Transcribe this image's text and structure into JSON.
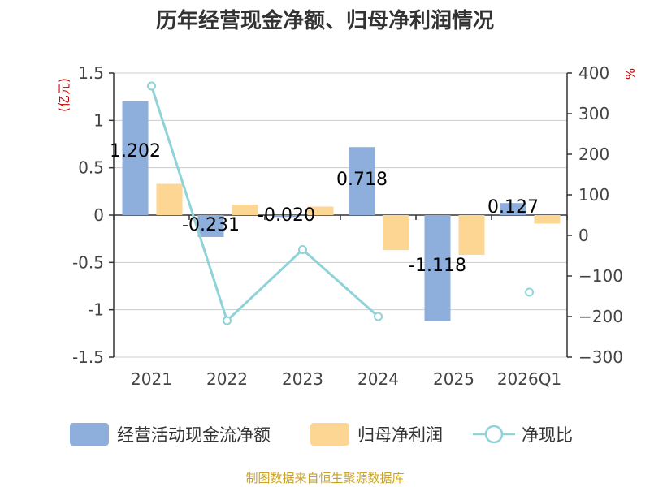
{
  "chart_data": {
    "type": "bar",
    "title": "历年经营现金净额、归母净利润情况",
    "categories": [
      "2021",
      "2022",
      "2023",
      "2024",
      "2025",
      "2026Q1"
    ],
    "y_left": {
      "unit": "(亿元)",
      "ylim": [
        -1.5,
        1.5
      ],
      "ticks": [
        1.5,
        1,
        0.5,
        0,
        -0.5,
        -1,
        -1.5
      ],
      "tick_labels": [
        "1.5",
        "1",
        "0.5",
        "0",
        "-0.5",
        "-1",
        "-1.5"
      ]
    },
    "y_right": {
      "unit": "%",
      "ylim": [
        -300,
        400
      ],
      "ticks": [
        400,
        300,
        200,
        100,
        0,
        -100,
        -200,
        -300
      ],
      "tick_labels": [
        "400",
        "300",
        "200",
        "100",
        "0",
        "−100",
        "−200",
        "−300"
      ]
    },
    "series": [
      {
        "name": "经营活动现金流净额",
        "type": "bar",
        "axis": "left",
        "color": "#8eaedb",
        "values": [
          1.202,
          -0.231,
          -0.02,
          0.718,
          -1.118,
          0.127
        ],
        "labels": [
          "1.202",
          "-0.231",
          "-0.020",
          "0.718",
          "-1.118",
          "0.127"
        ]
      },
      {
        "name": "归母净利润",
        "type": "bar",
        "axis": "left",
        "color": "#fdd693",
        "values": [
          0.33,
          0.11,
          0.09,
          -0.37,
          -0.42,
          -0.09
        ]
      },
      {
        "name": "净现比",
        "type": "line",
        "axis": "right",
        "color": "#8fd3d8",
        "values": [
          368,
          -210,
          -35,
          -200,
          null,
          -140
        ]
      }
    ],
    "grid": true,
    "legend_position": "bottom"
  },
  "source": "制图数据来自恒生聚源数据库"
}
